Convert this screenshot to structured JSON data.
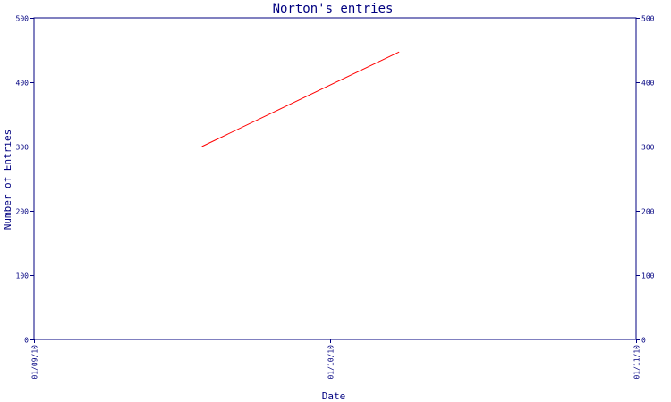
{
  "chart_data": {
    "type": "line",
    "title": "Norton's entries",
    "xlabel": "Date",
    "ylabel": "Number of Entries",
    "ylim": [
      0,
      500
    ],
    "yticks": [
      0,
      100,
      200,
      300,
      400,
      500
    ],
    "xlim": [
      "2010-09-01",
      "2010-11-01"
    ],
    "xticks": [
      {
        "date": "2010-09-01",
        "label": "01/09/10"
      },
      {
        "date": "2010-10-01",
        "label": "01/10/10"
      },
      {
        "date": "2010-11-01",
        "label": "01/11/10"
      }
    ],
    "grid": false,
    "legend": "none",
    "series": [
      {
        "color": "#ff0000",
        "points": [
          {
            "x": "2010-09-18",
            "y": 300
          },
          {
            "x": "2010-10-08",
            "y": 447
          }
        ]
      }
    ],
    "colors": {
      "axis": "#000080",
      "line": "#ff0000",
      "background": "#ffffff"
    }
  }
}
